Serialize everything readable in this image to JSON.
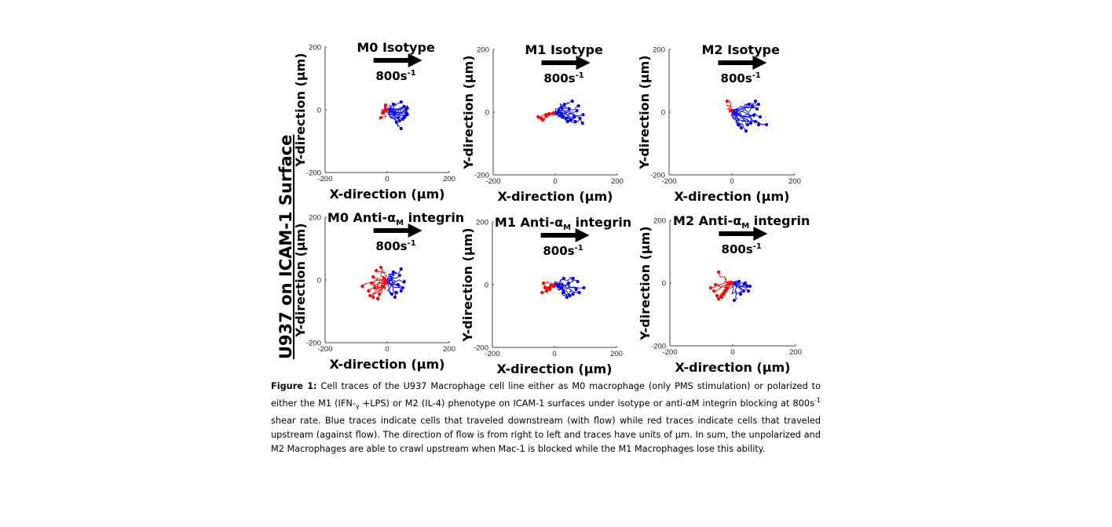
{
  "figure": {
    "side_title": "U937 on ICAM-1 Surface",
    "caption": {
      "label": "Figure 1:",
      "text_parts": [
        " Cell traces of the U937 Macrophage cell line either as M0 macrophage (only PMS stimulation) or polarized to either the M1 (IFN-",
        "γ",
        " +LPS) or M2 (IL-4) phenotype on ICAM-1 surfaces under isotype or anti-αM  integrin blocking at 800s",
        "-1",
        " shear rate. Blue traces indicate cells that traveled downstream (with flow) while red traces indicate cells that traveled upstream (against flow).  The direction  of flow is from right to left and traces have units of µm. In sum, the unpolarized and M2 Macrophages are able to crawl upstream when Mac-1 is blocked while the M1 Macrophages lose this ability."
      ]
    }
  },
  "chart_data": [
    {
      "type": "line",
      "title": "M0 Isotype",
      "shear_label": "800s",
      "shear_exp": "-1",
      "xlabel": "X-direction (µm)",
      "ylabel": "Y-direction (µm)",
      "xlim": [
        -200,
        200
      ],
      "ylim": [
        -200,
        200
      ],
      "xticks": [
        "-200",
        "0",
        "200"
      ],
      "yticks": [
        "-200",
        "0",
        "200"
      ],
      "series": [
        {
          "name": "downstream",
          "color": "#0000ff",
          "endpoints": [
            [
              20,
              18
            ],
            [
              45,
              25
            ],
            [
              55,
              10
            ],
            [
              60,
              0
            ],
            [
              62,
              -10
            ],
            [
              58,
              -20
            ],
            [
              50,
              -30
            ],
            [
              40,
              -35
            ],
            [
              30,
              -40
            ],
            [
              45,
              -60
            ],
            [
              65,
              -15
            ],
            [
              65,
              5
            ],
            [
              55,
              -25
            ],
            [
              35,
              -25
            ],
            [
              25,
              -10
            ]
          ]
        },
        {
          "name": "upstream",
          "color": "#ff0000",
          "endpoints": [
            [
              -5,
              15
            ],
            [
              -15,
              -10
            ],
            [
              -20,
              -25
            ],
            [
              -10,
              -5
            ]
          ]
        }
      ]
    },
    {
      "type": "line",
      "title": "M1 Isotype",
      "shear_label": "800s",
      "shear_exp": "-1",
      "xlabel": "X-direction (µm)",
      "ylabel": "Y-direction (µm)",
      "xlim": [
        -200,
        200
      ],
      "ylim": [
        -200,
        200
      ],
      "xticks": [
        "-200",
        "0",
        "200"
      ],
      "yticks": [
        "-200",
        "0",
        "200"
      ],
      "series": [
        {
          "name": "downstream",
          "color": "#0000ff",
          "endpoints": [
            [
              55,
              35
            ],
            [
              75,
              20
            ],
            [
              90,
              -8
            ],
            [
              88,
              -35
            ],
            [
              65,
              -30
            ],
            [
              50,
              -25
            ],
            [
              40,
              -30
            ],
            [
              30,
              25
            ],
            [
              70,
              5
            ],
            [
              60,
              -15
            ],
            [
              45,
              10
            ],
            [
              80,
              -20
            ],
            [
              35,
              -20
            ],
            [
              20,
              15
            ]
          ]
        },
        {
          "name": "upstream",
          "color": "#ff0000",
          "endpoints": [
            [
              -55,
              -15
            ],
            [
              -40,
              -25
            ],
            [
              -30,
              -10
            ],
            [
              -20,
              -5
            ],
            [
              -45,
              -20
            ]
          ]
        }
      ]
    },
    {
      "type": "line",
      "title": "M2 Isotype",
      "shear_label": "800s",
      "shear_exp": "-1",
      "xlabel": "X-direction (µm)",
      "ylabel": "Y-direction (µm)",
      "xlim": [
        -200,
        200
      ],
      "ylim": [
        -200,
        200
      ],
      "xticks": [
        "-200",
        "0",
        "200"
      ],
      "yticks": [
        "-200",
        "0",
        "200"
      ],
      "series": [
        {
          "name": "downstream",
          "color": "#0000ff",
          "endpoints": [
            [
              75,
              35
            ],
            [
              85,
              25
            ],
            [
              80,
              10
            ],
            [
              90,
              -15
            ],
            [
              110,
              -40
            ],
            [
              85,
              -40
            ],
            [
              75,
              -30
            ],
            [
              60,
              -35
            ],
            [
              50,
              -40
            ],
            [
              45,
              -60
            ],
            [
              30,
              -50
            ],
            [
              20,
              -40
            ],
            [
              65,
              20
            ],
            [
              55,
              25
            ],
            [
              70,
              -10
            ]
          ]
        },
        {
          "name": "upstream",
          "color": "#ff0000",
          "endpoints": [
            [
              -15,
              35
            ],
            [
              -3,
              5
            ]
          ]
        }
      ]
    },
    {
      "type": "line",
      "title": "M0 Anti-α",
      "title_sub": "M",
      "title_suffix": " integrin",
      "shear_label": "800s",
      "shear_exp": "-1",
      "xlabel": "X-direction (µm)",
      "ylabel": "Y-direction (µm)",
      "xlim": [
        -200,
        200
      ],
      "ylim": [
        -200,
        200
      ],
      "xticks": [
        "-200",
        "0",
        "200"
      ],
      "yticks": [
        "-200",
        "0",
        "200"
      ],
      "series": [
        {
          "name": "downstream",
          "color": "#0000ff",
          "endpoints": [
            [
              45,
              35
            ],
            [
              40,
              15
            ],
            [
              55,
              -5
            ],
            [
              50,
              -25
            ],
            [
              45,
              -35
            ],
            [
              30,
              -40
            ],
            [
              25,
              -55
            ],
            [
              15,
              -45
            ],
            [
              35,
              -15
            ],
            [
              20,
              25
            ]
          ]
        },
        {
          "name": "upstream",
          "color": "#ff0000",
          "endpoints": [
            [
              -20,
              40
            ],
            [
              -35,
              30
            ],
            [
              -45,
              10
            ],
            [
              -80,
              -20
            ],
            [
              -60,
              -35
            ],
            [
              -55,
              -50
            ],
            [
              -45,
              -55
            ],
            [
              -30,
              -60
            ],
            [
              -40,
              -25
            ],
            [
              -25,
              -45
            ],
            [
              -15,
              -20
            ],
            [
              -50,
              -10
            ]
          ]
        }
      ]
    },
    {
      "type": "line",
      "title": "M1 Anti-α",
      "title_sub": "M",
      "title_suffix": " integrin",
      "shear_label": "800s",
      "shear_exp": "-1",
      "xlabel": "X-direction (µm)",
      "ylabel": "Y-direction (µm)",
      "xlim": [
        -200,
        200
      ],
      "ylim": [
        -200,
        200
      ],
      "xticks": [
        "-200",
        "0",
        "200"
      ],
      "yticks": [
        "-200",
        "0",
        "200"
      ],
      "series": [
        {
          "name": "downstream",
          "color": "#0000ff",
          "endpoints": [
            [
              30,
              20
            ],
            [
              60,
              20
            ],
            [
              75,
              10
            ],
            [
              95,
              -10
            ],
            [
              80,
              -25
            ],
            [
              60,
              -30
            ],
            [
              50,
              -35
            ],
            [
              40,
              -40
            ],
            [
              30,
              -25
            ],
            [
              70,
              -15
            ],
            [
              45,
              5
            ],
            [
              20,
              -10
            ]
          ]
        },
        {
          "name": "upstream",
          "color": "#ff0000",
          "endpoints": [
            [
              -35,
              5
            ],
            [
              -40,
              -25
            ],
            [
              -25,
              -20
            ],
            [
              -30,
              -10
            ],
            [
              -15,
              -15
            ]
          ]
        }
      ]
    },
    {
      "type": "line",
      "title": "M2 Anti-α",
      "title_sub": "M",
      "title_suffix": " integrin",
      "shear_label": "800s",
      "shear_exp": "-1",
      "xlabel": "X-direction (µm)",
      "ylabel": "Y-direction (µm)",
      "xlim": [
        -200,
        200
      ],
      "ylim": [
        -200,
        200
      ],
      "xticks": [
        "-200",
        "0",
        "200"
      ],
      "yticks": [
        "-200",
        "0",
        "200"
      ],
      "series": [
        {
          "name": "downstream",
          "color": "#0000ff",
          "endpoints": [
            [
              40,
              0
            ],
            [
              55,
              -10
            ],
            [
              50,
              -25
            ],
            [
              35,
              -25
            ],
            [
              25,
              -35
            ],
            [
              5,
              -55
            ],
            [
              45,
              -10
            ],
            [
              20,
              5
            ]
          ]
        },
        {
          "name": "upstream",
          "color": "#ff0000",
          "endpoints": [
            [
              -45,
              35
            ],
            [
              -70,
              -15
            ],
            [
              -60,
              -25
            ],
            [
              -50,
              -40
            ],
            [
              -45,
              -50
            ],
            [
              -35,
              -45
            ],
            [
              -30,
              -35
            ],
            [
              -20,
              -15
            ],
            [
              -55,
              -5
            ],
            [
              -25,
              -25
            ]
          ]
        }
      ]
    }
  ]
}
